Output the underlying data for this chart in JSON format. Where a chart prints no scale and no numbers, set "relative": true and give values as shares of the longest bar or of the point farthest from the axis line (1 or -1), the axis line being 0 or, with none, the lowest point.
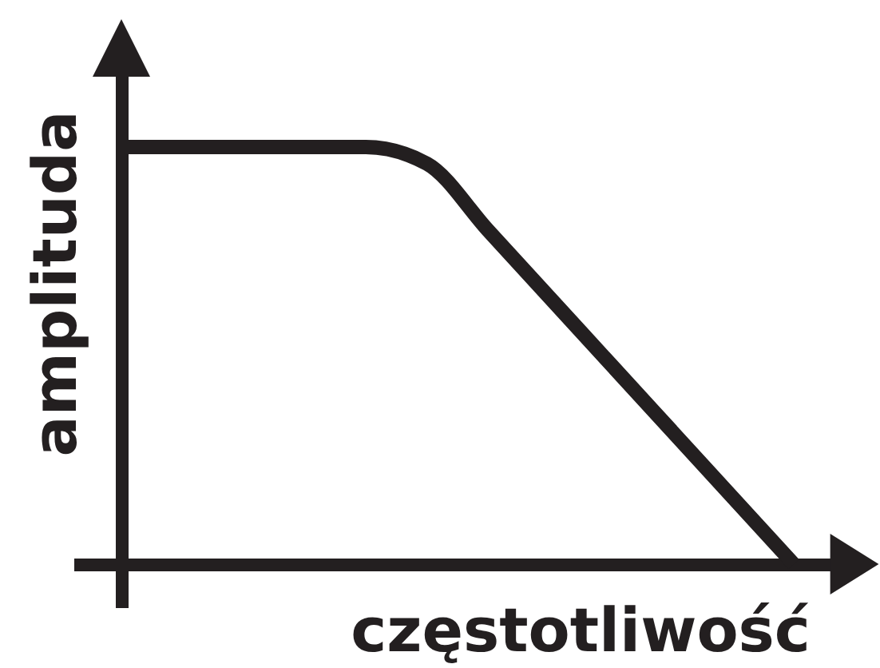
{
  "chart_data": {
    "type": "line",
    "xlabel": "częstotliwość",
    "ylabel": "amplituda",
    "relative": true,
    "categories": [
      null,
      null,
      null,
      null,
      null,
      null,
      null,
      null,
      null,
      null,
      null,
      null
    ],
    "series": [
      {
        "color": "#231f20",
        "values": [
          1,
          1,
          1,
          1,
          1,
          0.96,
          0.8,
          0.64,
          0.48,
          0.32,
          0.16,
          0
        ]
      }
    ]
  }
}
